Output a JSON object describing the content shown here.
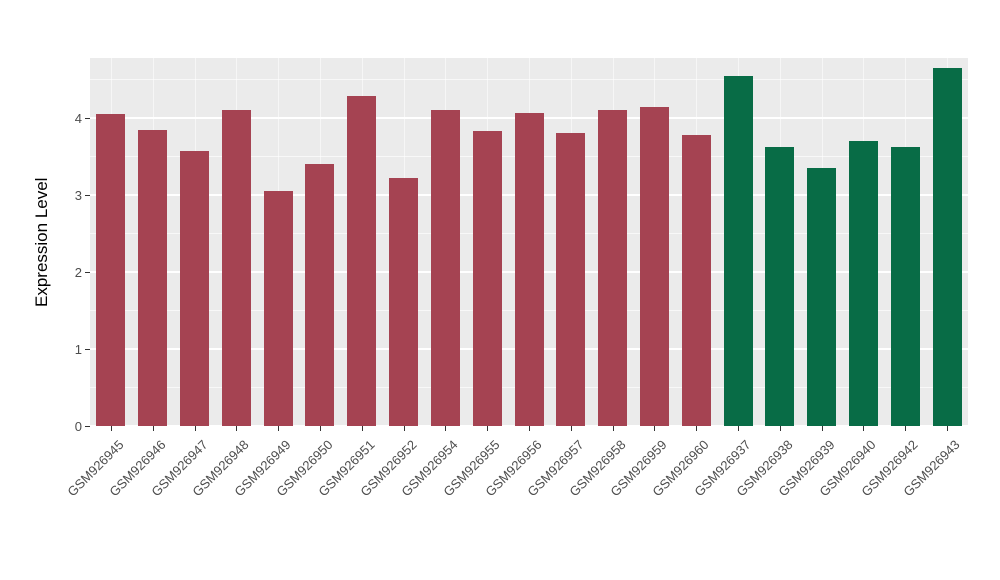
{
  "chart_data": {
    "type": "bar",
    "title": "",
    "xlabel": "",
    "ylabel": "Expression Level",
    "ylim": [
      0,
      4.78
    ],
    "yticks": [
      0,
      1,
      2,
      3,
      4
    ],
    "grid": "on",
    "legend": "none",
    "panel_background": "#EBEBEB",
    "categories": [
      "GSM926945",
      "GSM926946",
      "GSM926947",
      "GSM926948",
      "GSM926949",
      "GSM926950",
      "GSM926951",
      "GSM926952",
      "GSM926954",
      "GSM926955",
      "GSM926956",
      "GSM926957",
      "GSM926958",
      "GSM926959",
      "GSM926960",
      "GSM926937",
      "GSM926938",
      "GSM926939",
      "GSM926940",
      "GSM926942",
      "GSM926943"
    ],
    "values": [
      4.05,
      3.85,
      3.57,
      4.1,
      3.05,
      3.4,
      4.28,
      3.22,
      4.1,
      3.83,
      4.06,
      3.8,
      4.1,
      4.15,
      3.78,
      4.55,
      3.63,
      3.35,
      3.7,
      3.63,
      4.65
    ],
    "groups": [
      "red",
      "red",
      "red",
      "red",
      "red",
      "red",
      "red",
      "red",
      "red",
      "red",
      "red",
      "red",
      "red",
      "red",
      "red",
      "green",
      "green",
      "green",
      "green",
      "green",
      "green"
    ],
    "colors": {
      "red": "#A54352",
      "green": "#086C46"
    }
  }
}
